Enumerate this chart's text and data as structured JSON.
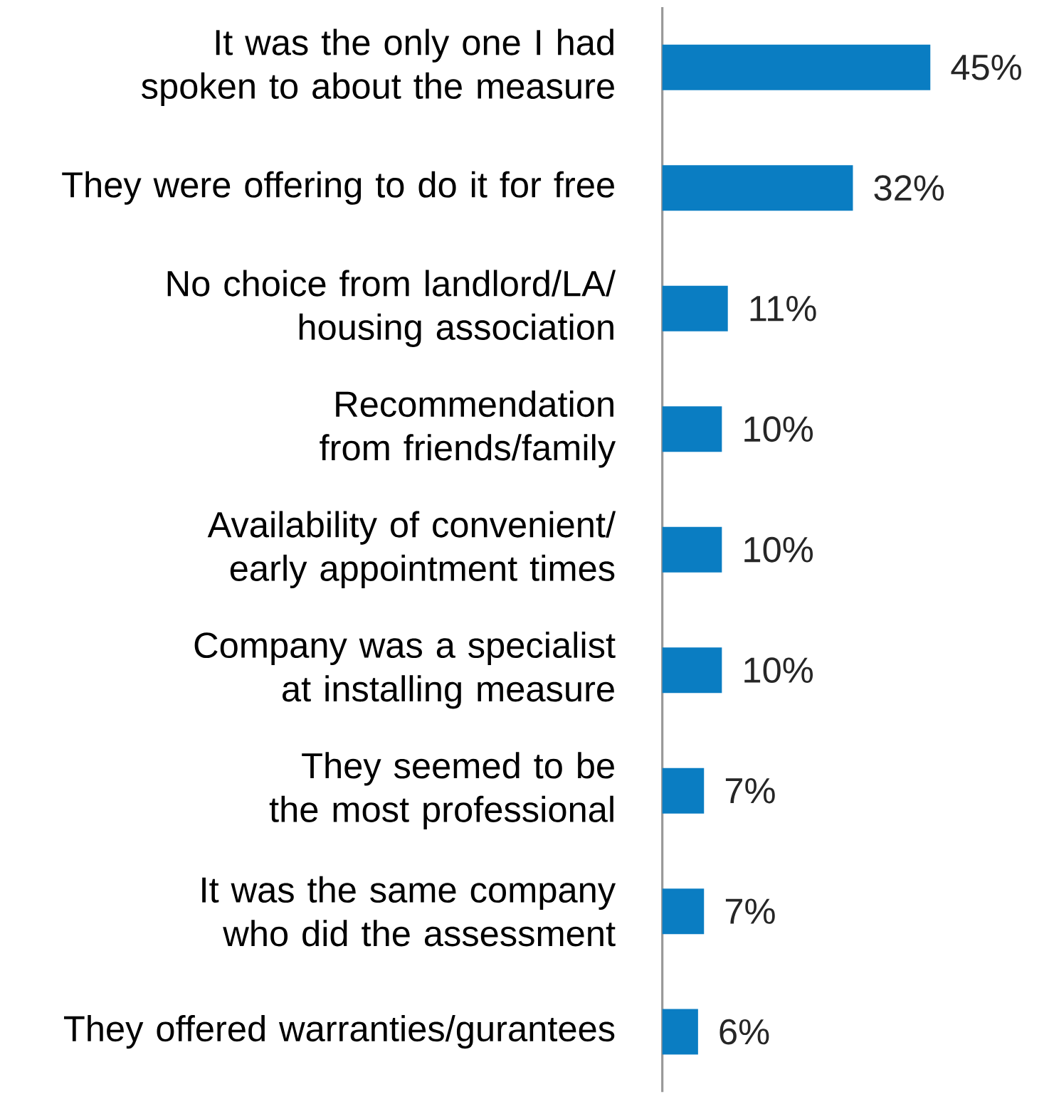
{
  "chart_data": {
    "type": "bar",
    "orientation": "horizontal",
    "categories": [
      "It was the only one I had spoken to about the measure",
      "They were offering to do it for free",
      "No choice from landlord/LA/ housing association",
      "Recommendation from friends/family",
      "Availability of convenient/ early appointment times",
      "Company was a specialist at installing measure",
      "They seemed to be the most professional",
      "It was the same company who did the assessment",
      "They offered warranties/gurantees"
    ],
    "values": [
      45,
      32,
      11,
      10,
      10,
      10,
      7,
      7,
      6
    ],
    "value_labels": [
      "45%",
      "32%",
      "11%",
      "10%",
      "10%",
      "10%",
      "7%",
      "7%",
      "6%"
    ],
    "color": "#0a7dc2"
  }
}
